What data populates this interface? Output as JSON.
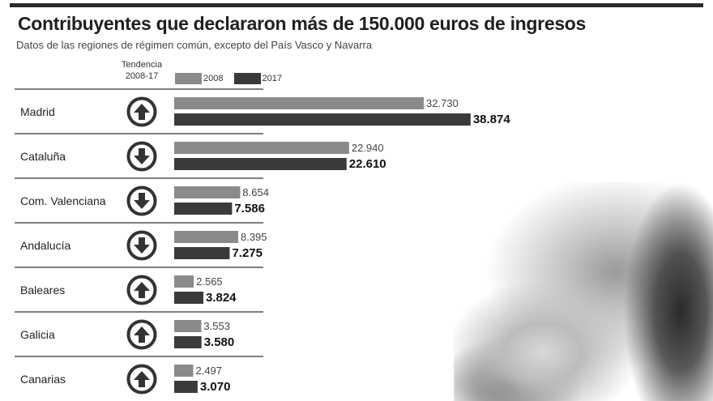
{
  "chart_data": {
    "type": "bar",
    "orientation": "horizontal",
    "title": "Contribuyentes que declararon más de 150.000 euros de ingresos",
    "subtitle": "Datos de las regiones de régimen común, excepto del País Vasco y Navarra",
    "trend_header": [
      "Tendencia",
      "2008-17"
    ],
    "categories": [
      "Madrid",
      "Cataluña",
      "Com. Valenciana",
      "Andalucía",
      "Baleares",
      "Galicia",
      "Canarias"
    ],
    "series": [
      {
        "name": "2008",
        "color": "#8a8a8a",
        "values": [
          32730,
          22940,
          8654,
          8395,
          2565,
          3553,
          2497
        ],
        "labels": [
          "32.730",
          "22.940",
          "8.654",
          "8.395",
          "2.565",
          "3.553",
          "2.497"
        ]
      },
      {
        "name": "2017",
        "color": "#3a3a3a",
        "values": [
          38874,
          22610,
          7586,
          7275,
          3824,
          3580,
          3070
        ],
        "labels": [
          "38.874",
          "22.610",
          "7.586",
          "7.275",
          "3.824",
          "3.580",
          "3.070"
        ]
      }
    ],
    "trend": [
      "up",
      "down",
      "down",
      "down",
      "up",
      "up",
      "up"
    ],
    "trend_icons": [
      "arrow-up-icon",
      "arrow-down-icon"
    ],
    "grid": false,
    "legend_position": "top"
  }
}
